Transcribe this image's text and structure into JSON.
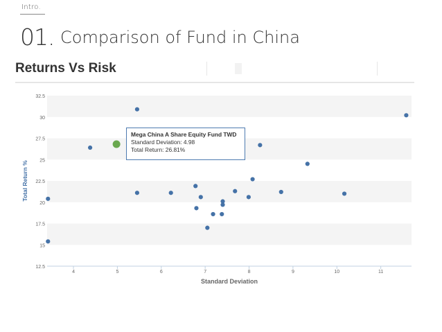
{
  "slide": {
    "intro_label": "Intro.",
    "number": "01.",
    "title": "Comparison of Fund in China"
  },
  "chart_data": {
    "type": "scatter",
    "title": "Returns Vs Risk",
    "xlabel": "Standard Deviation",
    "ylabel": "Total Return %",
    "xlim": [
      3.4,
      11.7
    ],
    "ylim": [
      12.5,
      32.5
    ],
    "x_ticks": [
      4,
      5,
      6,
      7,
      8,
      9,
      10,
      11
    ],
    "y_ticks": [
      12.5,
      15,
      17.5,
      20,
      22.5,
      25,
      27.5,
      30,
      32.5
    ],
    "grid": "horizontal bands",
    "colors": {
      "points": "#4572a7",
      "highlight": "#6aa84f",
      "axis_text": "#666666"
    },
    "points": [
      {
        "x": 3.42,
        "y": 15.4
      },
      {
        "x": 3.42,
        "y": 20.4
      },
      {
        "x": 4.38,
        "y": 26.4
      },
      {
        "x": 5.45,
        "y": 30.9
      },
      {
        "x": 5.45,
        "y": 21.1
      },
      {
        "x": 6.22,
        "y": 21.1
      },
      {
        "x": 6.78,
        "y": 21.9
      },
      {
        "x": 6.8,
        "y": 19.3
      },
      {
        "x": 6.9,
        "y": 20.6
      },
      {
        "x": 7.05,
        "y": 17.0
      },
      {
        "x": 7.18,
        "y": 18.6
      },
      {
        "x": 7.38,
        "y": 18.6
      },
      {
        "x": 7.4,
        "y": 19.7
      },
      {
        "x": 7.4,
        "y": 20.1
      },
      {
        "x": 7.68,
        "y": 21.3
      },
      {
        "x": 7.99,
        "y": 20.6
      },
      {
        "x": 8.08,
        "y": 22.7
      },
      {
        "x": 8.25,
        "y": 26.7
      },
      {
        "x": 8.73,
        "y": 21.2
      },
      {
        "x": 9.33,
        "y": 24.5
      },
      {
        "x": 10.17,
        "y": 21.0
      },
      {
        "x": 11.58,
        "y": 30.2
      }
    ],
    "highlight": {
      "x": 4.98,
      "y": 26.81,
      "tooltip_title": "Mega China A Share Equity Fund TWD",
      "tooltip_sd": "Standard Deviation: 4.98",
      "tooltip_return": "Total Return: 26.81%"
    }
  }
}
